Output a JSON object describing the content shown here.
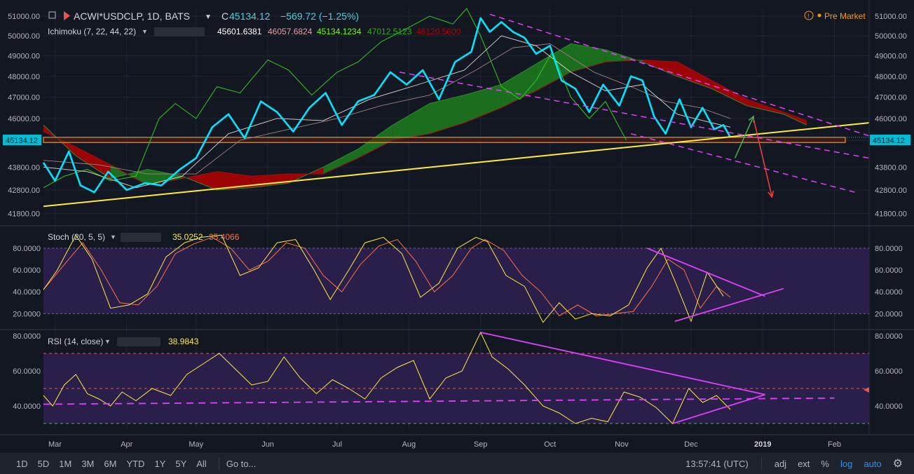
{
  "header": {
    "symbol": "ACWI*USDCLP, 1D, BATS",
    "ohlc_prefix": "C",
    "close": "45134.12",
    "change": "−569.72 (−1.25%)",
    "pre_market": "Pre Market",
    "last_price_tag": "45134.12"
  },
  "ichimoku": {
    "label": "Ichimoku (7, 22, 44, 22)",
    "values": [
      "45601.6381",
      "46057.6824",
      "45134.1234",
      "47012.5123",
      "46120.5600"
    ]
  },
  "stoch": {
    "label": "Stoch (20, 5, 5)",
    "k": "35.0252",
    "d": "35.4066"
  },
  "rsi": {
    "label": "RSI (14, close)",
    "value": "38.9843"
  },
  "toolbar": {
    "timeframes": [
      "1D",
      "5D",
      "1M",
      "3M",
      "6M",
      "YTD",
      "1Y",
      "5Y",
      "All"
    ],
    "goto": "Go to...",
    "time": "13:57:41 (UTC)",
    "adj": "adj",
    "ext": "ext",
    "pct": "%",
    "log": "log",
    "auto": "auto"
  },
  "colors": {
    "price": "#00e5ff",
    "conversion": "#d8d8d8",
    "base": "#a08080",
    "lagging": "#2ecc1a",
    "cloud_bull": "#1e7e1e",
    "cloud_bear": "#b40000",
    "trend": "#ffeb3b",
    "channel": "#e040fb",
    "stoch_k": "#ffeb3b",
    "stoch_d": "#ff7043",
    "pane_bg": "#2a1f4a",
    "level": "#ff9800"
  },
  "chart_data": [
    {
      "type": "line",
      "title": "ACWI*USDCLP, 1D, BATS",
      "scale": "log",
      "y_ticks": [
        41800,
        42800,
        43800,
        45000,
        46000,
        47000,
        48000,
        49000,
        50000,
        51000
      ],
      "y_tick_labels": [
        "41800.00",
        "42800.00",
        "43800.00",
        "45000.00",
        "46000.00",
        "47000.00",
        "48000.00",
        "49000.00",
        "50000.00",
        "51000.00"
      ],
      "ylim": [
        41400,
        51400
      ],
      "x_labels": [
        "Mar",
        "Apr",
        "May",
        "Jun",
        "Jul",
        "Aug",
        "Sep",
        "Oct",
        "Nov",
        "Dec",
        "2019",
        "Feb"
      ],
      "x_label_dates": [
        "2018-03-01",
        "2018-04-01",
        "2018-05-01",
        "2018-06-01",
        "2018-07-01",
        "2018-08-01",
        "2018-09-01",
        "2018-10-01",
        "2018-11-01",
        "2018-12-01",
        "2019-01-01",
        "2019-02-01"
      ],
      "x_range": [
        "2018-02-24",
        "2019-02-16"
      ],
      "series": [
        {
          "key": "price",
          "x": [
            "2018-02-24",
            "2018-03-01",
            "2018-03-07",
            "2018-03-12",
            "2018-03-18",
            "2018-03-24",
            "2018-04-01",
            "2018-04-09",
            "2018-04-16",
            "2018-04-24",
            "2018-05-01",
            "2018-05-08",
            "2018-05-15",
            "2018-05-22",
            "2018-05-29",
            "2018-06-05",
            "2018-06-12",
            "2018-06-19",
            "2018-06-26",
            "2018-07-03",
            "2018-07-10",
            "2018-07-17",
            "2018-07-24",
            "2018-07-31",
            "2018-08-07",
            "2018-08-14",
            "2018-08-21",
            "2018-08-28",
            "2018-09-01",
            "2018-09-05",
            "2018-09-10",
            "2018-09-15",
            "2018-09-20",
            "2018-09-25",
            "2018-10-01",
            "2018-10-06",
            "2018-10-12",
            "2018-10-18",
            "2018-10-24",
            "2018-10-31",
            "2018-11-05",
            "2018-11-10",
            "2018-11-15",
            "2018-11-20",
            "2018-11-26",
            "2018-12-01",
            "2018-12-06",
            "2018-12-11",
            "2018-12-15",
            "2018-12-18"
          ],
          "y": [
            44000,
            43200,
            44500,
            43000,
            42700,
            43600,
            42800,
            43100,
            43000,
            43700,
            44200,
            45600,
            46200,
            45100,
            46800,
            46300,
            45400,
            46500,
            47200,
            45700,
            46800,
            47100,
            48200,
            47600,
            48300,
            46900,
            48700,
            49200,
            50900,
            50200,
            50700,
            50200,
            49900,
            49100,
            49500,
            47800,
            47400,
            46300,
            47600,
            46600,
            48000,
            47800,
            46100,
            45300,
            46900,
            45600,
            46500,
            45500,
            45700,
            45134
          ]
        },
        {
          "key": "conversion",
          "x": [
            "2018-02-24",
            "2018-03-15",
            "2018-04-05",
            "2018-04-25",
            "2018-05-15",
            "2018-06-05",
            "2018-06-25",
            "2018-07-15",
            "2018-08-05",
            "2018-08-25",
            "2018-09-10",
            "2018-09-25",
            "2018-10-10",
            "2018-10-25",
            "2018-11-10",
            "2018-11-25",
            "2018-12-10",
            "2018-12-18"
          ],
          "y": [
            43800,
            43600,
            42900,
            43400,
            45300,
            46000,
            45900,
            46900,
            47600,
            48300,
            50000,
            49500,
            48200,
            47300,
            47600,
            46200,
            45800,
            45600
          ]
        },
        {
          "key": "base",
          "x": [
            "2018-02-24",
            "2018-03-20",
            "2018-04-10",
            "2018-05-01",
            "2018-05-20",
            "2018-06-10",
            "2018-07-01",
            "2018-07-20",
            "2018-08-10",
            "2018-08-30",
            "2018-09-15",
            "2018-10-01",
            "2018-10-20",
            "2018-11-05",
            "2018-11-20",
            "2018-12-05",
            "2018-12-18"
          ],
          "y": [
            44100,
            43900,
            43500,
            43500,
            45000,
            45500,
            46000,
            46600,
            47100,
            48300,
            49400,
            49600,
            48200,
            47500,
            46800,
            46500,
            46000
          ]
        },
        {
          "key": "lagging",
          "x": [
            "2018-02-24",
            "2018-03-05",
            "2018-03-15",
            "2018-03-25",
            "2018-04-05",
            "2018-04-15",
            "2018-04-22",
            "2018-05-01",
            "2018-05-10",
            "2018-05-20",
            "2018-06-01",
            "2018-06-10",
            "2018-06-20",
            "2018-07-01",
            "2018-07-10",
            "2018-07-20",
            "2018-07-30",
            "2018-08-10",
            "2018-08-20",
            "2018-08-26",
            "2018-09-01",
            "2018-09-10",
            "2018-09-18",
            "2018-09-25",
            "2018-10-02",
            "2018-10-10",
            "2018-10-18",
            "2018-10-25",
            "2018-11-03"
          ],
          "y": [
            42900,
            43400,
            43700,
            43200,
            43400,
            46000,
            46700,
            46000,
            47500,
            47200,
            48800,
            48300,
            47100,
            48200,
            48700,
            49700,
            50300,
            51000,
            50600,
            51400,
            50000,
            47500,
            46900,
            47800,
            49200,
            47000,
            46000,
            46800,
            45000
          ]
        }
      ],
      "cloud_a": {
        "x": [
          "2018-02-24",
          "2018-03-10",
          "2018-03-25",
          "2018-04-10",
          "2018-04-25",
          "2018-05-10",
          "2018-05-25",
          "2018-06-10",
          "2018-06-25",
          "2018-07-10",
          "2018-07-25",
          "2018-08-10",
          "2018-08-25",
          "2018-09-10",
          "2018-09-25",
          "2018-10-10",
          "2018-10-25",
          "2018-11-10",
          "2018-11-25",
          "2018-12-10",
          "2018-12-25",
          "2019-01-10",
          "2019-01-20"
        ],
        "y": [
          45700,
          44300,
          43300,
          43700,
          43400,
          42800,
          42900,
          43100,
          43800,
          44600,
          45700,
          46700,
          47100,
          47600,
          48600,
          49600,
          49300,
          48700,
          48000,
          47400,
          46600,
          46200,
          45700
        ]
      },
      "cloud_b": {
        "x": [
          "2018-02-24",
          "2018-03-10",
          "2018-03-25",
          "2018-04-10",
          "2018-04-25",
          "2018-05-10",
          "2018-05-25",
          "2018-06-10",
          "2018-06-25",
          "2018-07-10",
          "2018-07-25",
          "2018-08-10",
          "2018-08-25",
          "2018-09-10",
          "2018-09-25",
          "2018-10-10",
          "2018-10-25",
          "2018-11-10",
          "2018-11-25",
          "2018-12-10",
          "2018-12-25",
          "2019-01-10",
          "2019-01-20"
        ],
        "y": [
          45400,
          44700,
          43900,
          43000,
          43300,
          43600,
          43400,
          43500,
          43500,
          44200,
          45000,
          45300,
          45800,
          46500,
          47300,
          48200,
          48700,
          48800,
          48700,
          47800,
          46900,
          46300,
          45900
        ]
      },
      "trend_lines": [
        {
          "style": "solid",
          "color": "trend",
          "x": [
            "2018-02-24",
            "2019-02-16"
          ],
          "y": [
            42100,
            45800
          ]
        },
        {
          "style": "dashed",
          "color": "channel",
          "x": [
            "2018-07-28",
            "2019-02-16"
          ],
          "y": [
            48200,
            44200
          ]
        },
        {
          "style": "dashed",
          "color": "channel",
          "x": [
            "2018-09-05",
            "2019-02-16"
          ],
          "y": [
            51100,
            45200
          ]
        },
        {
          "style": "dashed",
          "color": "channel",
          "x": [
            "2018-11-05",
            "2019-02-10"
          ],
          "y": [
            45300,
            42700
          ]
        },
        {
          "style": "arrow",
          "color": "#4caf50",
          "x": [
            "2018-12-20",
            "2018-12-28"
          ],
          "y": [
            44200,
            46100
          ]
        },
        {
          "style": "arrow",
          "color": "#f44336",
          "x": [
            "2018-12-28",
            "2019-01-05"
          ],
          "y": [
            46000,
            42500
          ]
        }
      ],
      "levels": [
        45134,
        44900
      ]
    },
    {
      "type": "line",
      "title": "Stoch (20, 5, 5)",
      "ylim": [
        8,
        98
      ],
      "y_ticks": [
        20,
        40,
        60,
        80
      ],
      "y_tick_labels": [
        "20.0000",
        "40.0000",
        "60.0000",
        "80.0000"
      ],
      "bands": [
        20,
        80
      ],
      "series": [
        {
          "key": "stoch_k",
          "x": [
            "2018-02-24",
            "2018-03-02",
            "2018-03-10",
            "2018-03-17",
            "2018-03-25",
            "2018-04-02",
            "2018-04-10",
            "2018-04-18",
            "2018-04-26",
            "2018-05-03",
            "2018-05-12",
            "2018-05-20",
            "2018-05-28",
            "2018-06-05",
            "2018-06-13",
            "2018-06-21",
            "2018-06-28",
            "2018-07-06",
            "2018-07-13",
            "2018-07-21",
            "2018-07-29",
            "2018-08-06",
            "2018-08-14",
            "2018-08-22",
            "2018-08-30",
            "2018-09-04",
            "2018-09-12",
            "2018-09-20",
            "2018-09-28",
            "2018-10-05",
            "2018-10-12",
            "2018-10-19",
            "2018-10-27",
            "2018-11-04",
            "2018-11-12",
            "2018-11-18",
            "2018-11-24",
            "2018-12-01",
            "2018-12-08",
            "2018-12-15"
          ],
          "y": [
            42,
            60,
            92,
            70,
            25,
            28,
            38,
            72,
            85,
            90,
            92,
            55,
            62,
            85,
            88,
            60,
            33,
            60,
            85,
            90,
            75,
            35,
            48,
            80,
            90,
            86,
            55,
            45,
            12,
            30,
            15,
            20,
            18,
            28,
            62,
            80,
            50,
            13,
            58,
            36
          ]
        },
        {
          "key": "stoch_d",
          "x": [
            "2018-02-24",
            "2018-03-05",
            "2018-03-13",
            "2018-03-21",
            "2018-03-29",
            "2018-04-06",
            "2018-04-14",
            "2018-04-22",
            "2018-04-30",
            "2018-05-08",
            "2018-05-16",
            "2018-05-24",
            "2018-06-01",
            "2018-06-09",
            "2018-06-17",
            "2018-06-25",
            "2018-07-03",
            "2018-07-11",
            "2018-07-19",
            "2018-07-27",
            "2018-08-04",
            "2018-08-12",
            "2018-08-20",
            "2018-08-28",
            "2018-09-03",
            "2018-09-11",
            "2018-09-19",
            "2018-09-27",
            "2018-10-05",
            "2018-10-13",
            "2018-10-21",
            "2018-10-29",
            "2018-11-06",
            "2018-11-14",
            "2018-11-21",
            "2018-11-28",
            "2018-12-05",
            "2018-12-12",
            "2018-12-18"
          ],
          "y": [
            42,
            65,
            85,
            60,
            30,
            28,
            45,
            75,
            84,
            90,
            80,
            60,
            68,
            85,
            80,
            55,
            40,
            65,
            82,
            88,
            68,
            40,
            55,
            80,
            88,
            78,
            55,
            40,
            18,
            28,
            18,
            20,
            22,
            45,
            70,
            60,
            25,
            45,
            35
          ]
        }
      ],
      "trend_lines": [
        {
          "x": [
            "2018-11-12",
            "2019-01-02"
          ],
          "y": [
            80,
            36
          ]
        },
        {
          "x": [
            "2018-11-24",
            "2019-01-10"
          ],
          "y": [
            13,
            43
          ]
        }
      ]
    },
    {
      "type": "line",
      "title": "RSI (14, close)",
      "ylim": [
        26,
        82
      ],
      "y_ticks": [
        40,
        60,
        80
      ],
      "y_tick_labels": [
        "40.0000",
        "60.0000",
        "80.0000"
      ],
      "bands": [
        30,
        50,
        70
      ],
      "series": [
        {
          "key": "rsi",
          "x": [
            "2018-02-24",
            "2018-02-28",
            "2018-03-05",
            "2018-03-10",
            "2018-03-15",
            "2018-03-20",
            "2018-03-25",
            "2018-03-30",
            "2018-04-05",
            "2018-04-12",
            "2018-04-20",
            "2018-04-27",
            "2018-05-04",
            "2018-05-11",
            "2018-05-18",
            "2018-05-25",
            "2018-06-01",
            "2018-06-08",
            "2018-06-15",
            "2018-06-22",
            "2018-06-29",
            "2018-07-06",
            "2018-07-13",
            "2018-07-20",
            "2018-07-27",
            "2018-08-03",
            "2018-08-10",
            "2018-08-17",
            "2018-08-24",
            "2018-09-01",
            "2018-09-06",
            "2018-09-13",
            "2018-09-20",
            "2018-09-28",
            "2018-10-05",
            "2018-10-12",
            "2018-10-19",
            "2018-10-26",
            "2018-11-02",
            "2018-11-09",
            "2018-11-16",
            "2018-11-23",
            "2018-11-30",
            "2018-12-06",
            "2018-12-12",
            "2018-12-18"
          ],
          "y": [
            46,
            40,
            52,
            58,
            47,
            44,
            40,
            48,
            43,
            50,
            46,
            58,
            64,
            70,
            61,
            52,
            54,
            68,
            56,
            47,
            55,
            50,
            44,
            56,
            62,
            66,
            44,
            56,
            60,
            82,
            68,
            61,
            52,
            40,
            36,
            30,
            33,
            31,
            48,
            45,
            39,
            30,
            50,
            42,
            46,
            38
          ]
        }
      ],
      "trend_lines": [
        {
          "x": [
            "2018-09-01",
            "2019-01-02"
          ],
          "y": [
            82,
            46.5
          ]
        },
        {
          "x": [
            "2018-11-23",
            "2019-01-02"
          ],
          "y": [
            30,
            46.5
          ]
        },
        {
          "style": "dashed",
          "x": [
            "2018-02-24",
            "2019-02-01"
          ],
          "y": [
            41,
            44.5
          ]
        }
      ]
    }
  ]
}
